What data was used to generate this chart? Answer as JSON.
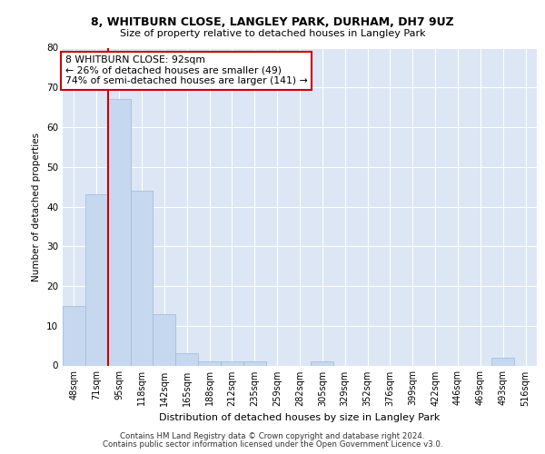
{
  "title1": "8, WHITBURN CLOSE, LANGLEY PARK, DURHAM, DH7 9UZ",
  "title2": "Size of property relative to detached houses in Langley Park",
  "xlabel": "Distribution of detached houses by size in Langley Park",
  "ylabel": "Number of detached properties",
  "bins": [
    "48sqm",
    "71sqm",
    "95sqm",
    "118sqm",
    "142sqm",
    "165sqm",
    "188sqm",
    "212sqm",
    "235sqm",
    "259sqm",
    "282sqm",
    "305sqm",
    "329sqm",
    "352sqm",
    "376sqm",
    "399sqm",
    "422sqm",
    "446sqm",
    "469sqm",
    "493sqm",
    "516sqm"
  ],
  "values": [
    15,
    43,
    67,
    44,
    13,
    3,
    1,
    1,
    1,
    0,
    0,
    1,
    0,
    0,
    0,
    0,
    0,
    0,
    0,
    2,
    0
  ],
  "bar_color": "#c5d8f0",
  "bar_edge_color": "#a0b8d8",
  "property_line_x": 1.5,
  "annotation_text": "8 WHITBURN CLOSE: 92sqm\n← 26% of detached houses are smaller (49)\n74% of semi-detached houses are larger (141) →",
  "annotation_box_color": "#ffffff",
  "annotation_box_edge": "#cc0000",
  "red_line_color": "#cc0000",
  "background_color": "#dce6f5",
  "ylim": [
    0,
    80
  ],
  "yticks": [
    0,
    10,
    20,
    30,
    40,
    50,
    60,
    70,
    80
  ],
  "footer1": "Contains HM Land Registry data © Crown copyright and database right 2024.",
  "footer2": "Contains public sector information licensed under the Open Government Licence v3.0."
}
